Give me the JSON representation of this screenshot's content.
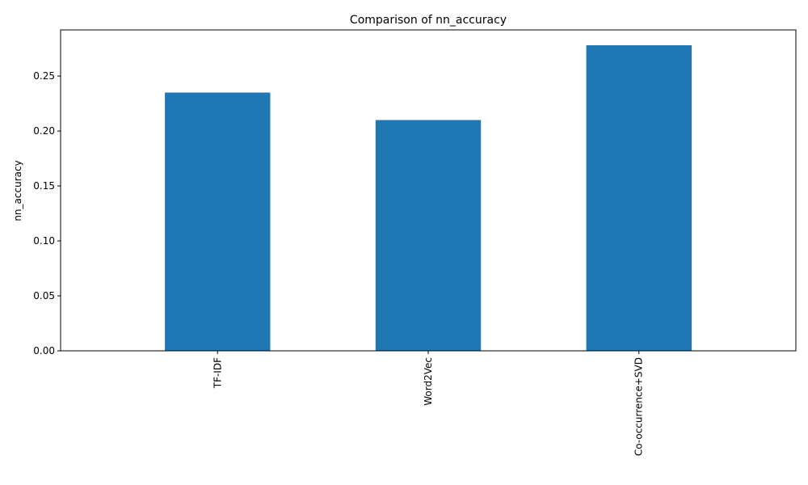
{
  "chart_data": {
    "type": "bar",
    "title": "Comparison of nn_accuracy",
    "xlabel": "",
    "ylabel": "nn_accuracy",
    "categories": [
      "TF-IDF",
      "Word2Vec",
      "Co-occurrence+SVD"
    ],
    "values": [
      0.235,
      0.21,
      0.278
    ],
    "ylim": [
      0,
      0.292
    ],
    "yticks": [
      0.0,
      0.05,
      0.1,
      0.15,
      0.2,
      0.25
    ],
    "ytick_labels": [
      "0.00",
      "0.05",
      "0.10",
      "0.15",
      "0.20",
      "0.25"
    ],
    "grid": false,
    "bar_color": "#1f77b4"
  }
}
